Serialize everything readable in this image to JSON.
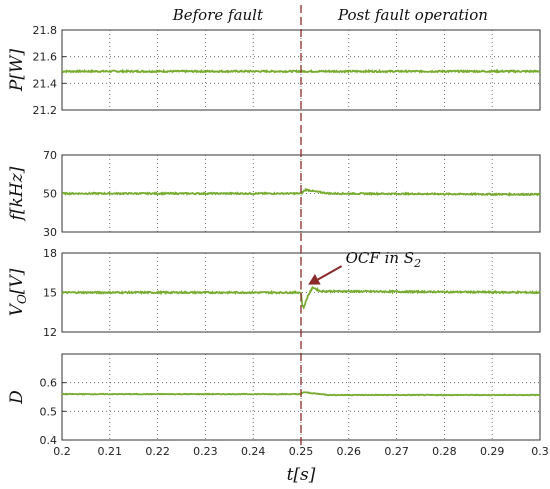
{
  "chart_data": {
    "type": "line",
    "xlabel": "t[s]",
    "xlim": [
      0.2,
      0.3
    ],
    "x_ticks": [
      "0.2",
      "0.21",
      "0.22",
      "0.23",
      "0.24",
      "0.25",
      "0.26",
      "0.27",
      "0.28",
      "0.29",
      "0.3"
    ],
    "fault_time": 0.25,
    "region_labels": [
      "Before fault",
      "Post fault operation"
    ],
    "line_color": "#77ac30",
    "fault_line_color": "#8b2a2a",
    "arrow_color": "#8b2a2a",
    "grid": true,
    "panels": [
      {
        "name": "power",
        "ylabel": "P[W]",
        "ylim": [
          21.2,
          21.8
        ],
        "y_ticks": [
          "21.2",
          "21.4",
          "21.6",
          "21.8"
        ],
        "x": [
          0.2,
          0.25,
          0.3
        ],
        "values": [
          21.49,
          21.49,
          21.49
        ]
      },
      {
        "name": "frequency",
        "ylabel": "f[kHz]",
        "ylim": [
          30,
          70
        ],
        "y_ticks": [
          "30",
          "50",
          "70"
        ],
        "x": [
          0.2,
          0.25,
          0.251,
          0.253,
          0.256,
          0.3
        ],
        "values": [
          50,
          50,
          52,
          51,
          50,
          49.5
        ]
      },
      {
        "name": "output-voltage",
        "ylabel": "V_O[V]",
        "ylim": [
          12,
          18
        ],
        "y_ticks": [
          "12",
          "15",
          "18"
        ],
        "x": [
          0.2,
          0.25,
          0.2502,
          0.2505,
          0.2515,
          0.2525,
          0.254,
          0.3
        ],
        "values": [
          15,
          15,
          14.2,
          13.8,
          14.8,
          15.4,
          15.1,
          15
        ],
        "annotation": "OCF in S_2"
      },
      {
        "name": "duty-cycle",
        "ylabel": "D",
        "ylim": [
          0.4,
          0.7
        ],
        "y_ticks": [
          "0.4",
          "0.5",
          "0.6"
        ],
        "x": [
          0.2,
          0.25,
          0.2505,
          0.253,
          0.256,
          0.3
        ],
        "values": [
          0.56,
          0.56,
          0.567,
          0.562,
          0.557,
          0.557
        ]
      }
    ]
  }
}
